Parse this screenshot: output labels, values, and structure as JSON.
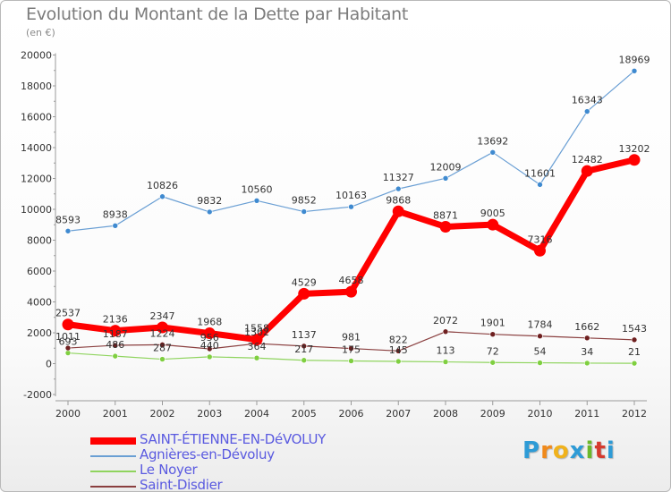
{
  "header": {
    "title": "Evolution du Montant de la Dette par Habitant",
    "subtitle": "(en €)"
  },
  "logo": {
    "text": "Proxiti",
    "colors": [
      "#2e9bd6",
      "#f08a1c",
      "#f0b21c",
      "#2e9bd6",
      "#6bb82a",
      "#d63a2e",
      "#2e9bd6"
    ]
  },
  "chart_data": {
    "type": "line",
    "x": [
      "2000",
      "2001",
      "2002",
      "2003",
      "2004",
      "2005",
      "2006",
      "2007",
      "2008",
      "2009",
      "2010",
      "2011",
      "2012"
    ],
    "ylim": [
      -2000,
      20000
    ],
    "yticks": [
      "-2000",
      "0",
      "2000",
      "4000",
      "6000",
      "8000",
      "10000",
      "12000",
      "14000",
      "16000",
      "18000",
      "20000"
    ],
    "grid": false,
    "legend_position": "bottom-left",
    "series": [
      {
        "name": "Agnières-en-Dévoluy",
        "color": "#6a9fd4",
        "marker_color": "#3f8ad0",
        "values": [
          8593,
          8938,
          10826,
          9832,
          10560,
          9852,
          10163,
          11327,
          12009,
          13692,
          11601,
          16343,
          18969
        ],
        "labels": [
          "8593",
          "8938",
          "10826",
          "9832",
          "10560",
          "9852",
          "10163",
          "11327",
          "12009",
          "13692",
          "11601",
          "16343",
          "18969"
        ]
      },
      {
        "name": "Le Noyer",
        "color": "#8fd45e",
        "marker_color": "#7fcf40",
        "values": [
          693,
          486,
          287,
          440,
          364,
          217,
          175,
          145,
          113,
          72,
          54,
          34,
          21
        ],
        "labels": [
          "693",
          "486",
          "287",
          "440",
          "364",
          "217",
          "175",
          "145",
          "113",
          "72",
          "54",
          "34",
          "21"
        ]
      },
      {
        "name": "Saint-Disdier",
        "color": "#8a3f3f",
        "marker_color": "#6e1f1f",
        "values": [
          1011,
          1187,
          1224,
          956,
          1302,
          1137,
          981,
          822,
          2072,
          1901,
          1784,
          1662,
          1543
        ],
        "labels": [
          "1011",
          "1187",
          "1224",
          "956",
          "1302",
          "1137",
          "981",
          "822",
          "2072",
          "1901",
          "1784",
          "1662",
          "1543"
        ]
      },
      {
        "name": "SAINT-ÉTIENNE-EN-DéVOLUY",
        "color": "#ff0000",
        "marker_color": "#ff0000",
        "values": [
          2537,
          2136,
          2347,
          1968,
          1558,
          4529,
          4658,
          9868,
          8871,
          9005,
          7316,
          12482,
          13202
        ],
        "labels": [
          "2537",
          "2136",
          "2347",
          "1968",
          "1558",
          "4529",
          "4658",
          "9868",
          "8871",
          "9005",
          "7316",
          "12482",
          "13202"
        ]
      }
    ],
    "legend_order": [
      "SAINT-ÉTIENNE-EN-DéVOLUY",
      "Agnières-en-Dévoluy",
      "Le Noyer",
      "Saint-Disdier"
    ]
  }
}
